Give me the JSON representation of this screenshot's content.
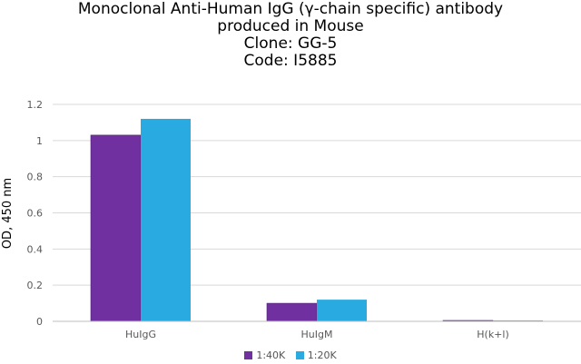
{
  "chart_data": {
    "type": "bar",
    "title_lines": [
      "Monoclonal Anti-Human IgG (γ-chain specific) antibody",
      "produced in Mouse",
      "Clone: GG-5",
      "Code: I5885"
    ],
    "xlabel": "",
    "ylabel": "OD, 450 nm",
    "categories": [
      "HuIgG",
      "HuIgM",
      "H(k+l)"
    ],
    "series": [
      {
        "name": "1:40K",
        "values": [
          1.03,
          0.1,
          0.005
        ],
        "color": "#7030A0"
      },
      {
        "name": "1:20K",
        "values": [
          1.12,
          0.12,
          0.005
        ],
        "color": "#29ABE2"
      }
    ],
    "ylim": [
      0,
      1.2
    ],
    "yticks": [
      {
        "value": 0,
        "label": "0"
      },
      {
        "value": 0.2,
        "label": "0.2"
      },
      {
        "value": 0.4,
        "label": "0.4"
      },
      {
        "value": 0.6,
        "label": "0.6"
      },
      {
        "value": 0.8,
        "label": "0.8"
      },
      {
        "value": 1.0,
        "label": "1"
      },
      {
        "value": 1.2,
        "label": "1.2"
      }
    ],
    "grid": true,
    "legend_position": "bottom"
  }
}
